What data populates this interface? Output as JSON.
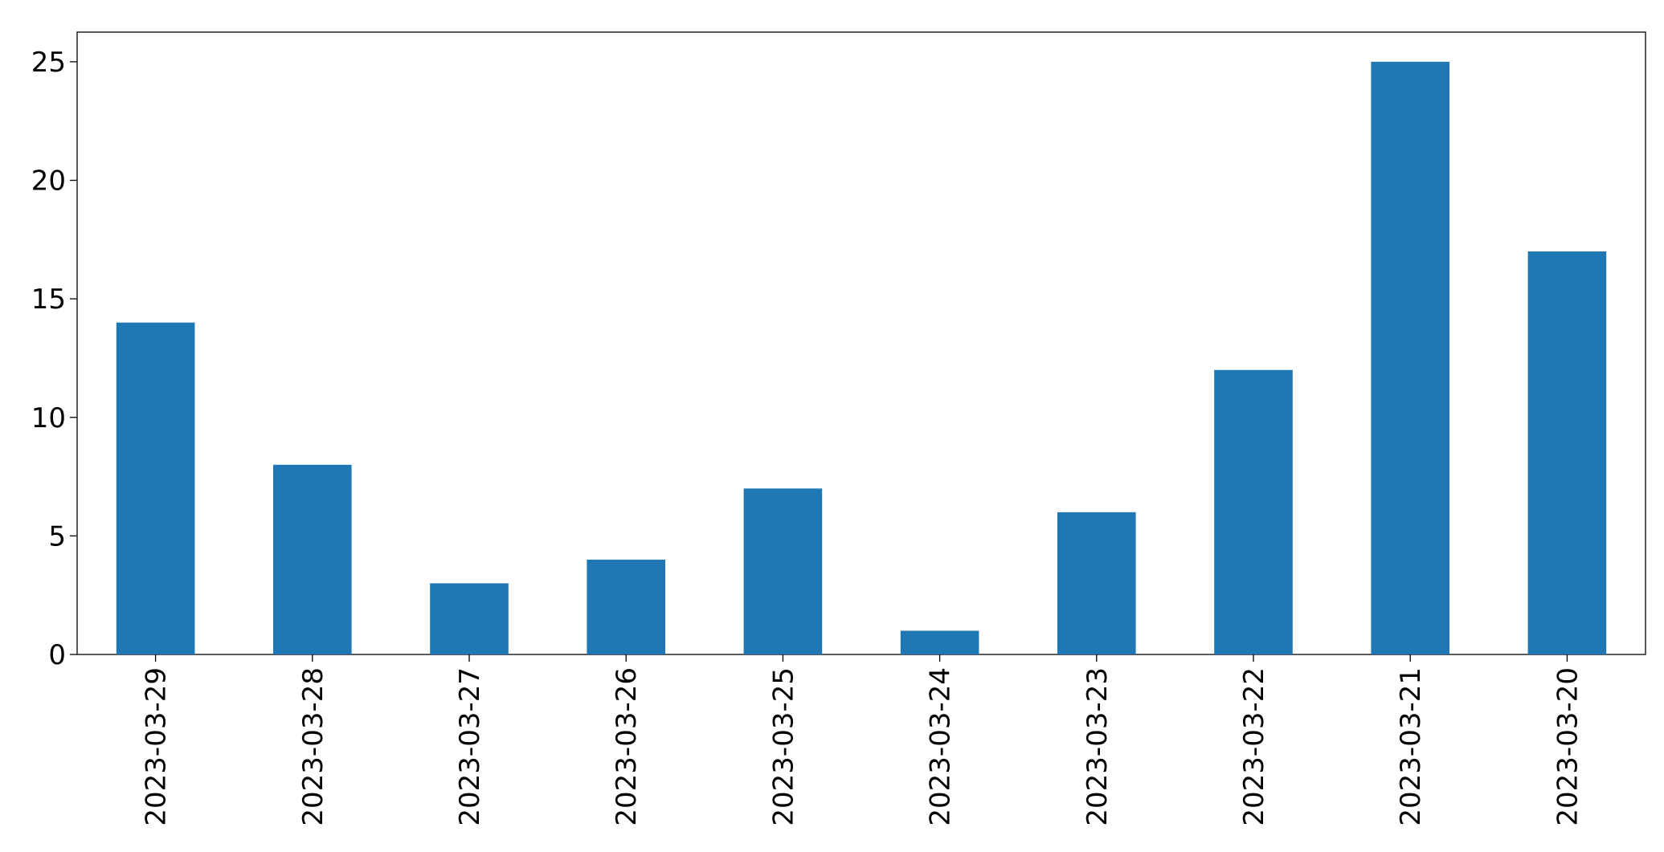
{
  "chart_data": {
    "type": "bar",
    "categories": [
      "2023-03-29",
      "2023-03-28",
      "2023-03-27",
      "2023-03-26",
      "2023-03-25",
      "2023-03-24",
      "2023-03-23",
      "2023-03-22",
      "2023-03-21",
      "2023-03-20"
    ],
    "values": [
      14,
      8,
      3,
      4,
      7,
      1,
      6,
      12,
      25,
      17
    ],
    "color": "#1f77b4",
    "ylim": [
      0,
      26.25
    ],
    "yticks": [
      0,
      5,
      10,
      15,
      20,
      25
    ],
    "grid": false
  }
}
